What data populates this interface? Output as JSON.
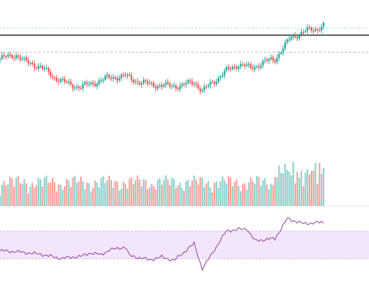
{
  "chart_data": {
    "type": "candlestick",
    "title": "",
    "xlabel": "",
    "ylabel": "",
    "grid": false,
    "legend": "none",
    "price": {
      "ylim": [
        0,
        100
      ],
      "reference_levels": [
        {
          "value": 90,
          "style": "dotted",
          "color": "#9fd9d3"
        },
        {
          "value": 85,
          "style": "solid",
          "color": "#222222"
        },
        {
          "value": 72,
          "style": "dashed",
          "color": "#b5b5b5"
        }
      ],
      "anchors": [
        [
          0,
          67
        ],
        [
          8,
          70
        ],
        [
          12,
          65
        ],
        [
          20,
          61
        ],
        [
          26,
          54
        ],
        [
          34,
          48
        ],
        [
          40,
          46
        ],
        [
          46,
          49
        ],
        [
          54,
          53
        ],
        [
          62,
          54
        ],
        [
          70,
          49
        ],
        [
          80,
          47
        ],
        [
          90,
          47
        ],
        [
          96,
          50
        ],
        [
          100,
          43
        ],
        [
          104,
          48
        ],
        [
          112,
          58
        ],
        [
          118,
          63
        ],
        [
          124,
          60
        ],
        [
          130,
          64
        ],
        [
          136,
          67
        ],
        [
          144,
          83
        ],
        [
          150,
          87
        ],
        [
          156,
          89
        ],
        [
          160,
          92
        ]
      ]
    },
    "volume": {
      "ylim": [
        0,
        100
      ],
      "style": "bars",
      "up_color": "#8fd3cb",
      "down_color": "#f4a3a0"
    },
    "rsi": {
      "ylim": [
        0,
        100
      ],
      "band": [
        30,
        70
      ],
      "band_color": "#f3e6fb",
      "line_color": "#9c5aa8",
      "anchors": [
        [
          0,
          42
        ],
        [
          10,
          40
        ],
        [
          20,
          37
        ],
        [
          30,
          31
        ],
        [
          40,
          34
        ],
        [
          45,
          39
        ],
        [
          50,
          36
        ],
        [
          54,
          43
        ],
        [
          62,
          47
        ],
        [
          64,
          35
        ],
        [
          74,
          29
        ],
        [
          80,
          33
        ],
        [
          86,
          28
        ],
        [
          96,
          52
        ],
        [
          100,
          16
        ],
        [
          112,
          70
        ],
        [
          122,
          73
        ],
        [
          126,
          56
        ],
        [
          136,
          59
        ],
        [
          142,
          87
        ],
        [
          150,
          80
        ],
        [
          160,
          82
        ]
      ]
    },
    "colors": {
      "up": "#26a69a",
      "down": "#ef5350"
    }
  }
}
